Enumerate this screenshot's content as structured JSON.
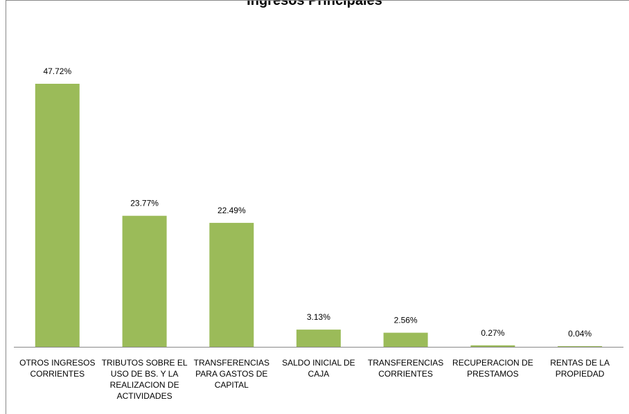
{
  "chart_data": {
    "type": "bar",
    "title": "Ingresos Principales",
    "categories": [
      "OTROS INGRESOS\nCORRIENTES",
      "TRIBUTOS SOBRE EL\nUSO DE BS. Y LA\nREALIZACION DE\nACTIVIDADES",
      "TRANSFERENCIAS\nPARA GASTOS DE\nCAPITAL",
      "SALDO INICIAL DE\nCAJA",
      "TRANSFERENCIAS\nCORRIENTES",
      "RECUPERACION DE\nPRESTAMOS",
      "RENTAS DE LA\nPROPIEDAD"
    ],
    "values": [
      47.72,
      23.77,
      22.49,
      3.13,
      2.56,
      0.27,
      0.04
    ],
    "data_labels": [
      "47.72%",
      "23.77%",
      "22.49%",
      "3.13%",
      "2.56%",
      "0.27%",
      "0.04%"
    ],
    "ylim": [
      0,
      50
    ],
    "grid": false,
    "bar_color": "#9BBB59",
    "xlabel": "",
    "ylabel": ""
  }
}
